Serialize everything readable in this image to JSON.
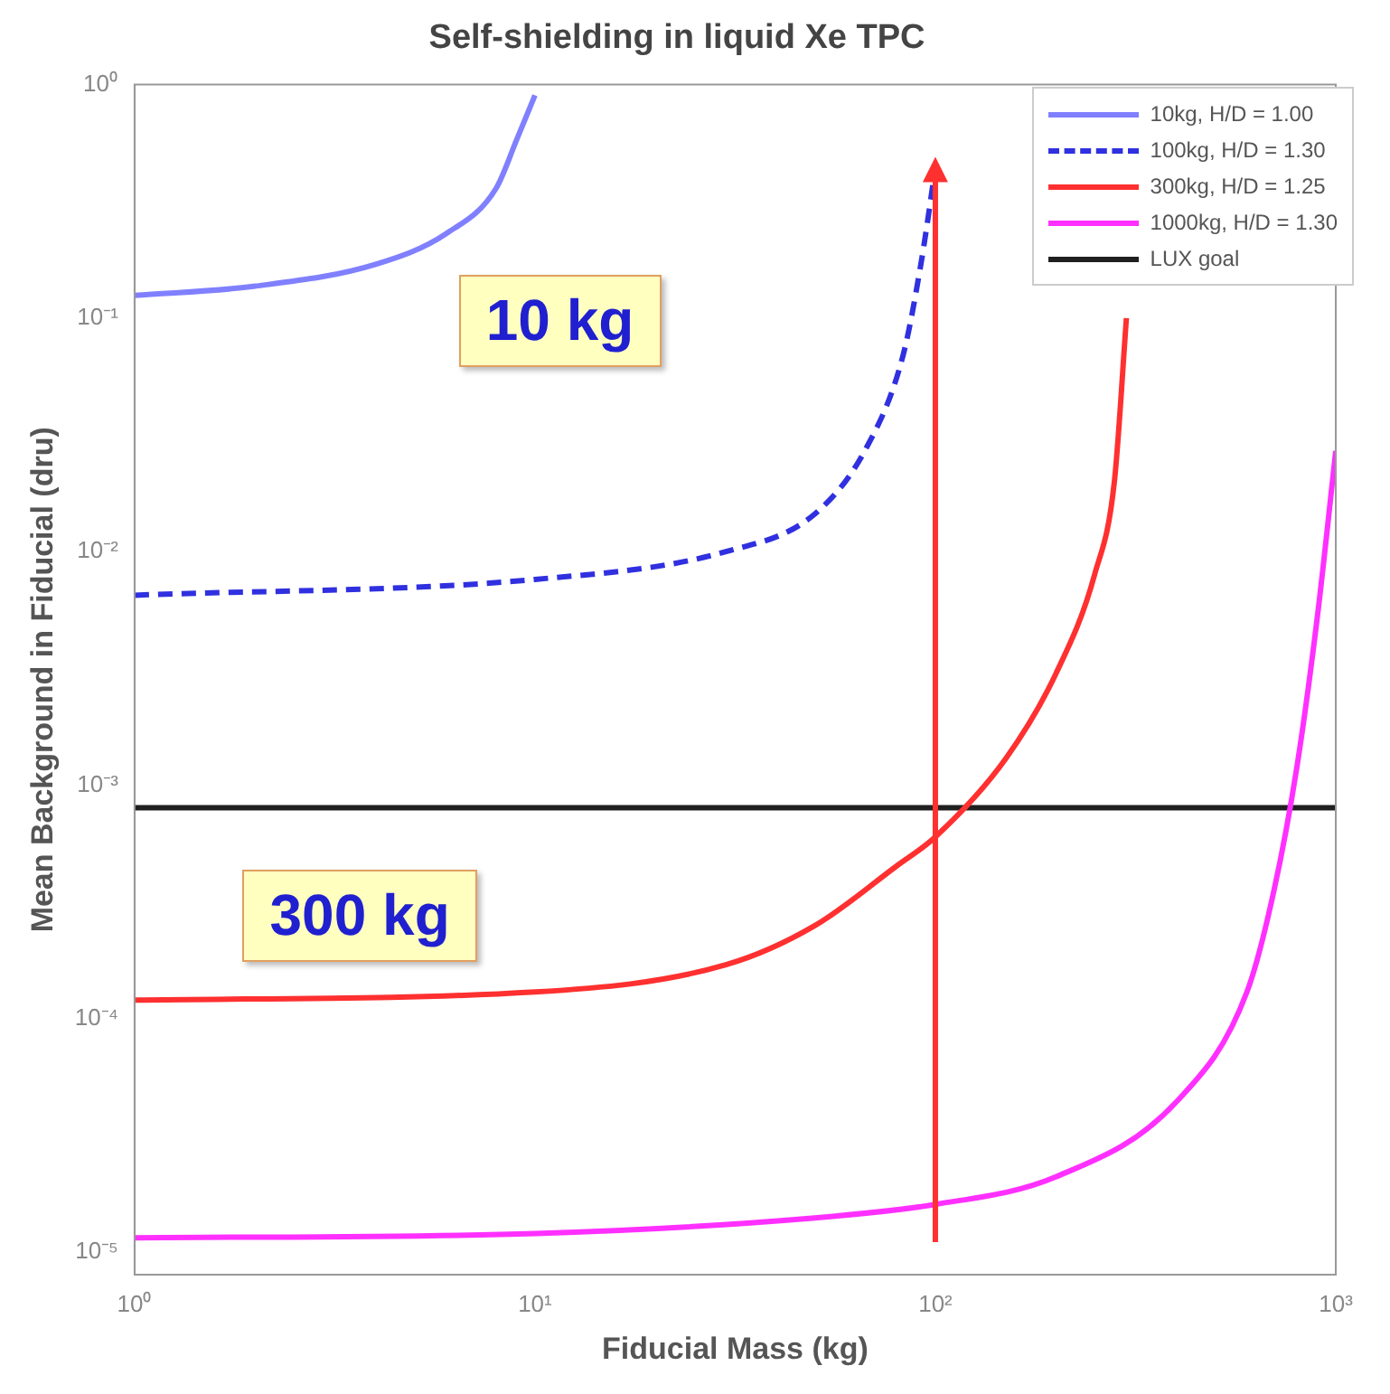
{
  "chart_data": {
    "type": "line",
    "title": "Self-shielding in liquid Xe TPC",
    "xlabel": "Fiducial Mass (kg)",
    "ylabel": "Mean Background in Fiducial (dru)",
    "log": "xy",
    "grid": false,
    "legend": "top right",
    "marker": "none",
    "xlim": [
      1,
      1000
    ],
    "xticks": [
      {
        "value": 1,
        "label": "10⁰"
      },
      {
        "value": 10,
        "label": "10¹"
      },
      {
        "value": 100,
        "label": "10²"
      },
      {
        "value": 1000,
        "label": "10³"
      }
    ],
    "ylim": [
      8e-06,
      1
    ],
    "yticks": [
      {
        "value": 1e-05,
        "label": "10⁻⁵"
      },
      {
        "value": 0.0001,
        "label": "10⁻⁴"
      },
      {
        "value": 0.001,
        "label": "10⁻³"
      },
      {
        "value": 0.01,
        "label": "10⁻²"
      },
      {
        "value": 0.1,
        "label": "10⁻¹"
      },
      {
        "value": 1,
        "label": "10⁰"
      }
    ],
    "series": [
      {
        "name": "10kg, H/D = 1.00",
        "color": "#8080ff",
        "line_style": "solid",
        "x": [
          1,
          2,
          4,
          6,
          8,
          9,
          10
        ],
        "values": [
          0.125,
          0.137,
          0.17,
          0.23,
          0.36,
          0.58,
          0.9
        ]
      },
      {
        "name": "100kg, H/D = 1.30",
        "color": "#3030e0",
        "line_style": "dashed",
        "x": [
          1,
          10,
          30,
          50,
          67,
          83,
          92,
          100
        ],
        "values": [
          0.0065,
          0.0076,
          0.01,
          0.0145,
          0.0275,
          0.069,
          0.17,
          0.44
        ]
      },
      {
        "name": "300kg, H/D = 1.25",
        "color": "#ff3030",
        "line_style": "solid",
        "x": [
          1,
          10,
          30,
          50,
          80,
          100,
          150,
          200,
          250,
          280,
          300
        ],
        "values": [
          0.00012,
          0.00013,
          0.00017,
          0.00025,
          0.00045,
          0.0006,
          0.0013,
          0.003,
          0.008,
          0.02,
          0.1
        ]
      },
      {
        "name": "1000kg, H/D = 1.30",
        "color": "#ff30ff",
        "line_style": "solid",
        "x": [
          1,
          10,
          50,
          100,
          200,
          400,
          600,
          700,
          800,
          900,
          1000
        ],
        "values": [
          1.15e-05,
          1.2e-05,
          1.4e-05,
          1.6e-05,
          2.1e-05,
          4.4e-05,
          0.00013,
          0.00035,
          0.0012,
          0.0053,
          0.027
        ]
      },
      {
        "name": "LUX goal",
        "color": "#202020",
        "line_style": "solid",
        "x": [
          1,
          1000
        ],
        "values": [
          0.0008,
          0.0008
        ]
      }
    ],
    "ref_lines": [
      {
        "axis": "x",
        "value": 100,
        "color": "#ff3030"
      }
    ],
    "annotations": [
      "10 kg",
      "300 kg"
    ]
  }
}
